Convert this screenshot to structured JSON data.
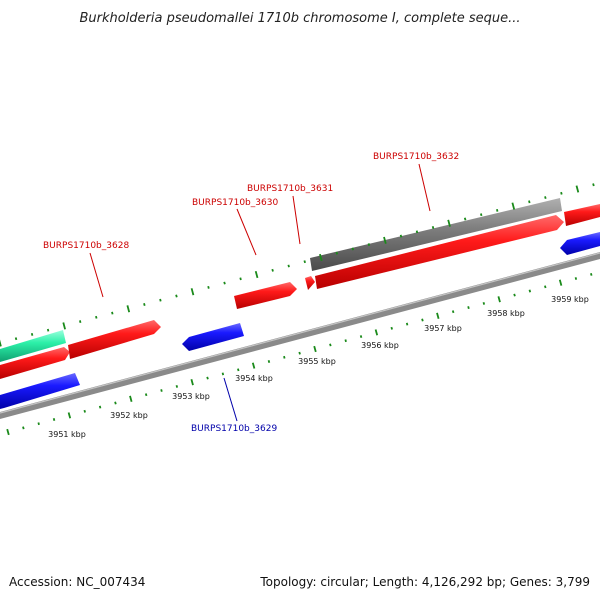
{
  "title": "Burkholderia pseudomallei 1710b chromosome I, complete seque...",
  "footer": {
    "accession": "Accession: NC_007434",
    "summary": "Topology: circular; Length: 4,126,292 bp; Genes: 3,799"
  },
  "ruler": {
    "labels": [
      "3951 kbp",
      "3952 kbp",
      "3953 kbp",
      "3954 kbp",
      "3955 kbp",
      "3956 kbp",
      "3957 kbp",
      "3958 kbp",
      "3959 kbp"
    ]
  },
  "gene_labels": [
    {
      "text": "BURPS1710b_3628",
      "strand": "forward"
    },
    {
      "text": "BURPS1710b_3630",
      "strand": "forward"
    },
    {
      "text": "BURPS1710b_3631",
      "strand": "forward"
    },
    {
      "text": "BURPS1710b_3632",
      "strand": "forward"
    },
    {
      "text": "BURPS1710b_3629",
      "strand": "reverse"
    }
  ],
  "colors": {
    "forward_gene": "#ee1111",
    "reverse_gene": "#1a1ae0",
    "gray_track": "#777777",
    "teal_track": "#22e8a0",
    "backbone": "#8a8a8a",
    "outer_ticks": "#1a8a1a",
    "inner_ticks": "#1a8a1a",
    "forward_label": "#cc0000",
    "reverse_label": "#0000aa"
  }
}
